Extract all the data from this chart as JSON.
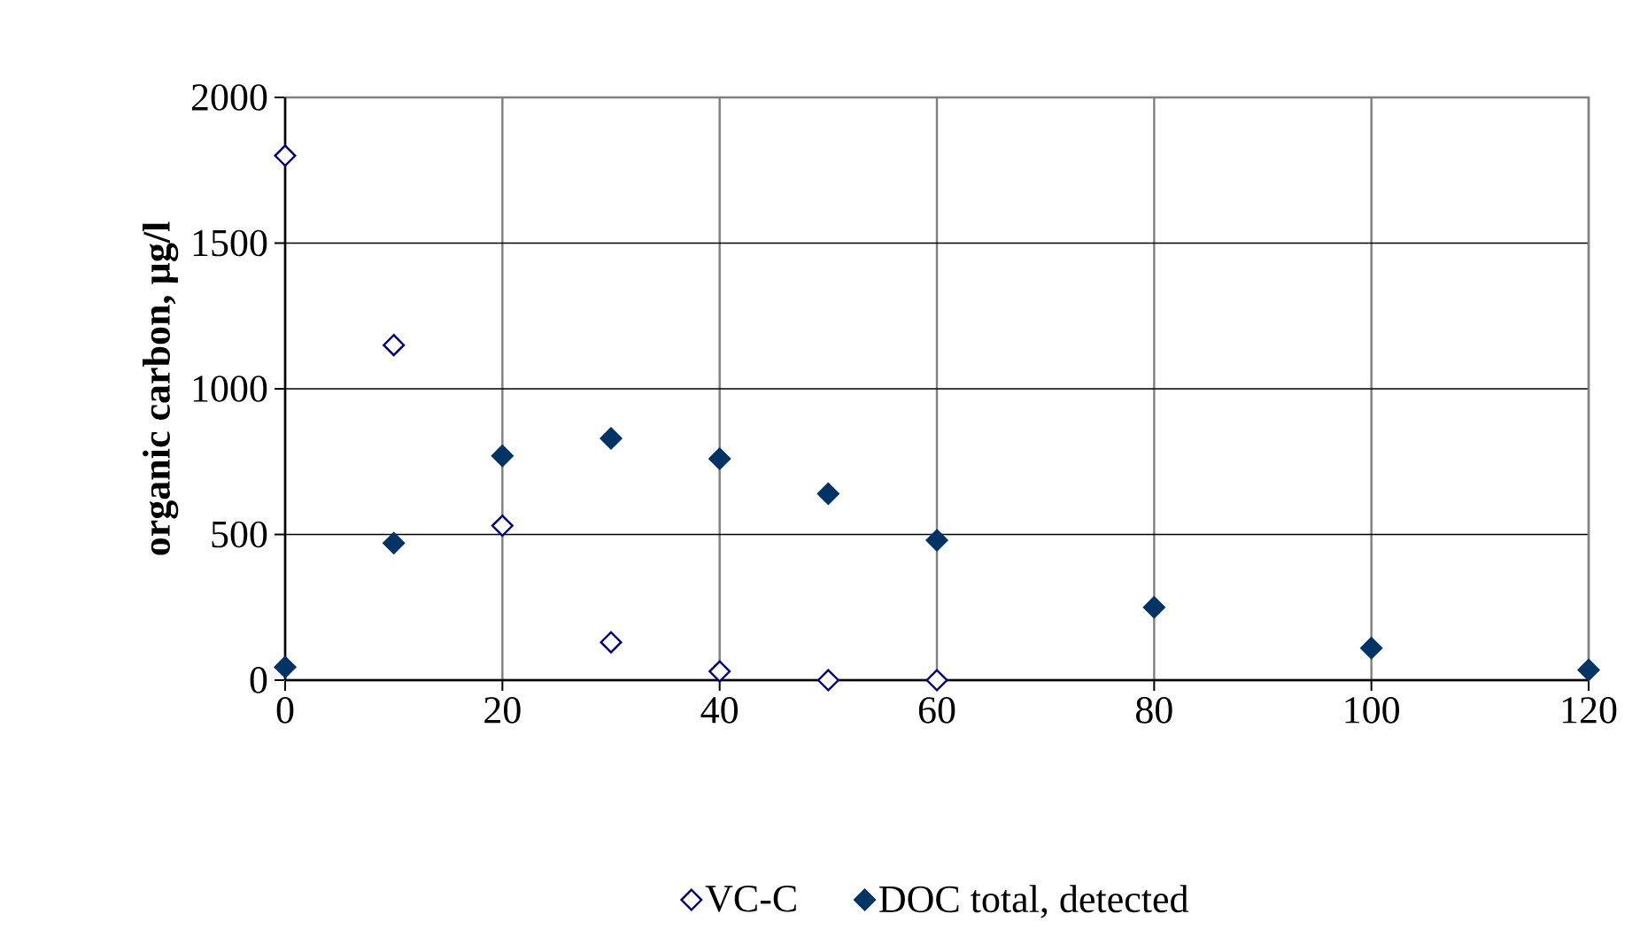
{
  "chart_data": {
    "type": "scatter",
    "ylabel": "organic carbon, µg/l",
    "x": [
      0,
      10,
      20,
      30,
      40,
      50,
      60,
      80,
      100,
      120
    ],
    "series": [
      {
        "name": "VC-C",
        "color": "#000080",
        "x": [
          0,
          10,
          20,
          30,
          40,
          50,
          60
        ],
        "values": [
          1800,
          1150,
          530,
          130,
          30,
          0,
          0
        ]
      },
      {
        "name": "DOC total, detected",
        "color": "#003366",
        "values": [
          45,
          470,
          770,
          830,
          760,
          640,
          480,
          250,
          110,
          35
        ]
      }
    ],
    "xlim": [
      0,
      120
    ],
    "xticks": [
      0,
      20,
      40,
      60,
      80,
      100,
      120
    ],
    "ylim": [
      0,
      2000
    ],
    "yticks": [
      0,
      500,
      1000,
      1500,
      2000
    ],
    "grid": true,
    "legend": "bottom",
    "marker": "diamond"
  }
}
